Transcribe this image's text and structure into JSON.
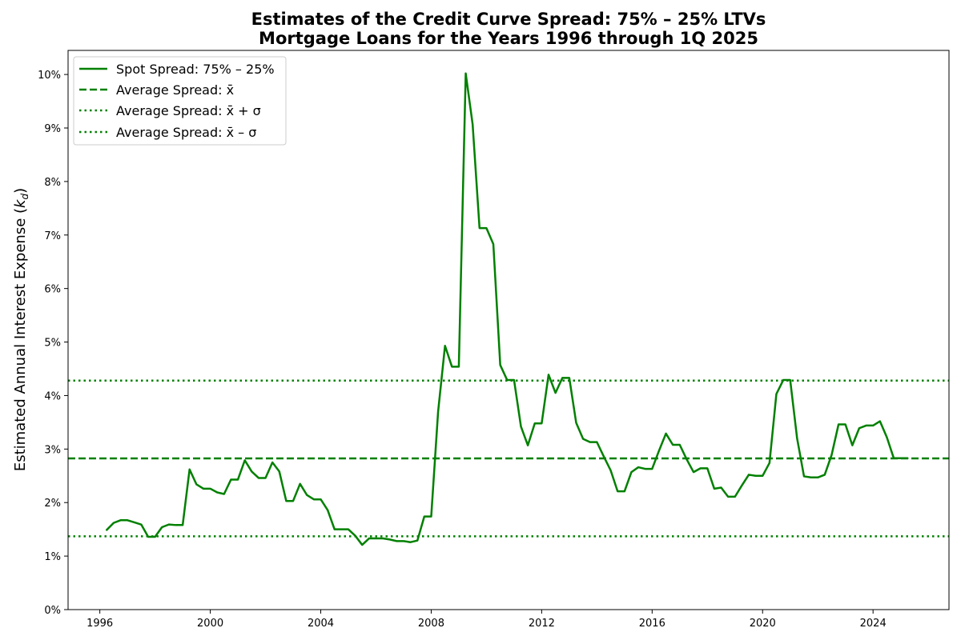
{
  "chart_data": {
    "type": "line",
    "title_line1": "Estimates of the Credit Curve Spread: 75% – 25% LTVs",
    "title_line2": "Mortgage Loans for the Years 1996 through 1Q 2025",
    "ylabel": "Estimated Annual Interest Expense (kd)",
    "ylabel_main": "Estimated Annual Interest Expense (",
    "ylabel_var": "k",
    "ylabel_sub": "d",
    "ylabel_close": ")",
    "xlabel": "",
    "xlim": [
      1994.85,
      2026.75
    ],
    "ylim": [
      0,
      0.1045
    ],
    "x_ticks": [
      1996,
      2000,
      2004,
      2008,
      2012,
      2016,
      2020,
      2024
    ],
    "y_ticks": [
      0,
      0.01,
      0.02,
      0.03,
      0.04,
      0.05,
      0.06,
      0.07,
      0.08,
      0.09,
      0.1
    ],
    "y_tick_labels": [
      "0%",
      "1%",
      "2%",
      "3%",
      "4%",
      "5%",
      "6%",
      "7%",
      "8%",
      "9%",
      "10%"
    ],
    "grid": false,
    "legend_position": "upper-left",
    "colors": {
      "series": "#008000"
    },
    "series": [
      {
        "name": "Spot Spread: 75% – 25%",
        "style": "solid",
        "x": [
          1996.25,
          1996.5,
          1996.75,
          1997.0,
          1997.25,
          1997.5,
          1997.75,
          1998.0,
          1998.25,
          1998.5,
          1998.75,
          1999.0,
          1999.25,
          1999.5,
          1999.75,
          2000.0,
          2000.25,
          2000.5,
          2000.75,
          2001.0,
          2001.25,
          2001.5,
          2001.75,
          2002.0,
          2002.25,
          2002.5,
          2002.75,
          2003.0,
          2003.25,
          2003.5,
          2003.75,
          2004.0,
          2004.25,
          2004.5,
          2004.75,
          2005.0,
          2005.25,
          2005.5,
          2005.75,
          2006.0,
          2006.25,
          2006.5,
          2006.75,
          2007.0,
          2007.25,
          2007.5,
          2007.75,
          2008.0,
          2008.25,
          2008.5,
          2008.75,
          2009.0,
          2009.25,
          2009.5,
          2009.75,
          2010.0,
          2010.25,
          2010.5,
          2010.75,
          2011.0,
          2011.25,
          2011.5,
          2011.75,
          2012.0,
          2012.25,
          2012.5,
          2012.75,
          2013.0,
          2013.25,
          2013.5,
          2013.75,
          2014.0,
          2014.25,
          2014.5,
          2014.75,
          2015.0,
          2015.25,
          2015.5,
          2015.75,
          2016.0,
          2016.25,
          2016.5,
          2016.75,
          2017.0,
          2017.25,
          2017.5,
          2017.75,
          2018.0,
          2018.25,
          2018.5,
          2018.75,
          2019.0,
          2019.25,
          2019.5,
          2019.75,
          2020.0,
          2020.25,
          2020.5,
          2020.75,
          2021.0,
          2021.25,
          2021.5,
          2021.75,
          2022.0,
          2022.25,
          2022.5,
          2022.75,
          2023.0,
          2023.25,
          2023.5,
          2023.75,
          2024.0,
          2024.25,
          2024.5,
          2024.75,
          2025.0,
          2025.25
        ],
        "values": [
          0.0149,
          0.0162,
          0.0167,
          0.0167,
          0.0163,
          0.0159,
          0.0136,
          0.0136,
          0.0154,
          0.0159,
          0.0158,
          0.0158,
          0.0262,
          0.0234,
          0.0226,
          0.0226,
          0.0219,
          0.0216,
          0.0243,
          0.0243,
          0.0279,
          0.0258,
          0.0246,
          0.0246,
          0.0275,
          0.0258,
          0.0203,
          0.0203,
          0.0235,
          0.0214,
          0.0206,
          0.0206,
          0.0186,
          0.015,
          0.015,
          0.015,
          0.0138,
          0.0121,
          0.0133,
          0.0133,
          0.0133,
          0.0131,
          0.0128,
          0.0128,
          0.0126,
          0.0129,
          0.0174,
          0.0174,
          0.037,
          0.0493,
          0.0454,
          0.0454,
          0.1002,
          0.0907,
          0.0713,
          0.0713,
          0.0683,
          0.0457,
          0.0429,
          0.0429,
          0.0342,
          0.0307,
          0.0348,
          0.0348,
          0.0439,
          0.0405,
          0.0433,
          0.0433,
          0.0349,
          0.0319,
          0.0313,
          0.0313,
          0.0286,
          0.026,
          0.0221,
          0.0221,
          0.0257,
          0.0266,
          0.0263,
          0.0263,
          0.0297,
          0.0329,
          0.0308,
          0.0308,
          0.0281,
          0.0257,
          0.0264,
          0.0264,
          0.0226,
          0.0228,
          0.0211,
          0.0211,
          0.0232,
          0.0252,
          0.025,
          0.025,
          0.0274,
          0.0403,
          0.0429,
          0.0429,
          0.032,
          0.0249,
          0.0247,
          0.0247,
          0.0252,
          0.0289,
          0.0346,
          0.0346,
          0.0307,
          0.0339,
          0.0344,
          0.0344,
          0.0352,
          0.0322,
          0.0283,
          0.0283,
          0.0283
        ]
      },
      {
        "name": "Average Spread: x̄",
        "style": "dashed",
        "value": 0.02825
      },
      {
        "name": "Average Spread: x̄ + σ",
        "style": "dotted",
        "value": 0.0428
      },
      {
        "name": "Average Spread: x̄ – σ",
        "style": "dotted",
        "value": 0.0137
      }
    ]
  }
}
